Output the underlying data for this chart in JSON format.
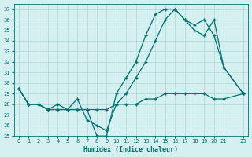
{
  "xlabel": "Humidex (Indice chaleur)",
  "bg_color": "#d4f0f0",
  "grid_color": "#b0d8d8",
  "line_color": "#007070",
  "xlim": [
    -0.5,
    23.5
  ],
  "ylim": [
    25,
    37.5
  ],
  "yticks": [
    25,
    26,
    27,
    28,
    29,
    30,
    31,
    32,
    33,
    34,
    35,
    36,
    37
  ],
  "xticks": [
    0,
    1,
    2,
    3,
    4,
    5,
    6,
    7,
    8,
    9,
    10,
    11,
    12,
    13,
    14,
    15,
    16,
    17,
    18,
    19,
    20,
    21,
    23
  ],
  "series1_x": [
    0,
    1,
    2,
    3,
    4,
    5,
    6,
    7,
    8,
    9,
    10,
    11,
    12,
    13,
    14,
    15,
    16,
    17,
    18,
    19,
    20,
    21,
    23
  ],
  "series1_y": [
    29.5,
    28.0,
    28.0,
    27.5,
    27.5,
    27.5,
    27.5,
    27.5,
    25.0,
    25.0,
    29.0,
    30.5,
    32.0,
    34.5,
    36.5,
    37.0,
    37.0,
    36.0,
    35.0,
    34.5,
    36.0,
    31.5,
    29.0
  ],
  "series2_x": [
    0,
    1,
    2,
    3,
    4,
    5,
    6,
    7,
    8,
    9,
    10,
    11,
    12,
    13,
    14,
    15,
    16,
    17,
    18,
    19,
    20,
    21,
    23
  ],
  "series2_y": [
    29.5,
    28.0,
    28.0,
    27.5,
    28.0,
    27.5,
    28.5,
    26.5,
    26.0,
    25.5,
    28.0,
    29.0,
    30.5,
    32.0,
    34.0,
    36.0,
    37.0,
    36.0,
    35.5,
    36.0,
    34.5,
    31.5,
    29.0
  ],
  "series3_x": [
    0,
    1,
    2,
    3,
    4,
    5,
    6,
    7,
    8,
    9,
    10,
    11,
    12,
    13,
    14,
    15,
    16,
    17,
    18,
    19,
    20,
    21,
    23
  ],
  "series3_y": [
    29.5,
    28.0,
    28.0,
    27.5,
    27.5,
    27.5,
    27.5,
    27.5,
    27.5,
    27.5,
    28.0,
    28.0,
    28.0,
    28.5,
    28.5,
    29.0,
    29.0,
    29.0,
    29.0,
    29.0,
    28.5,
    28.5,
    29.0
  ]
}
